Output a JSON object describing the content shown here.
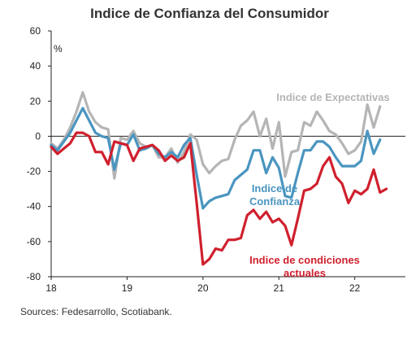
{
  "chart_data": {
    "type": "line",
    "title": "Indice de Confianza del Consumidor",
    "unit_label": "%",
    "source": "Sources: Fedesarrollo, Scotiabank.",
    "xlabel": "",
    "ylabel": "",
    "ylim": [
      -80,
      60
    ],
    "yticks": [
      60,
      40,
      20,
      0,
      -20,
      -40,
      -60,
      -80
    ],
    "xlim": [
      2018.0,
      2022.667
    ],
    "xticks": [
      {
        "value": 2018,
        "label": "18"
      },
      {
        "value": 2019,
        "label": "19"
      },
      {
        "value": 2020,
        "label": "20"
      },
      {
        "value": 2021,
        "label": "21"
      },
      {
        "value": 2022,
        "label": "22"
      }
    ],
    "series": [
      {
        "name": "Indice de Expectativas",
        "label_lines": [
          "Indice de Expectativas"
        ],
        "color": "#b5b5b5",
        "start": 2018.0,
        "step": 0.08333,
        "values": [
          -4,
          -7,
          -2,
          5,
          14,
          25,
          14,
          8,
          5,
          4,
          -24,
          -1,
          -2,
          3,
          -4,
          -6,
          -5,
          -12,
          -12,
          -7,
          -15,
          -9,
          1,
          -2,
          -16,
          -21,
          -17,
          -14,
          -13,
          -2,
          6,
          9,
          14,
          0,
          10,
          -7,
          8,
          -23,
          -9,
          -8,
          8,
          6,
          14,
          9,
          3,
          1,
          -4,
          -10,
          -8,
          -3,
          18,
          5,
          17
        ]
      },
      {
        "name": "Indice de Confianza",
        "label_lines": [
          "Indice de",
          "Confianza"
        ],
        "color": "#4a95c0",
        "start": 2018.0,
        "step": 0.08333,
        "values": [
          -5,
          -8,
          -3,
          2,
          9,
          16,
          9,
          2,
          0,
          -1,
          -19,
          -4,
          -5,
          1,
          -8,
          -7,
          -5,
          -10,
          -12,
          -9,
          -12,
          -5,
          -1,
          -22,
          -41,
          -37,
          -35,
          -34,
          -33,
          -25,
          -22,
          -19,
          -8,
          -8,
          -21,
          -12,
          -18,
          -34,
          -35,
          -21,
          -8,
          -8,
          -3,
          -3,
          -6,
          -12,
          -17,
          -17,
          -17,
          -14,
          3,
          -10,
          -2
        ]
      },
      {
        "name": "Indice de condiciones actuales",
        "label_lines": [
          "Indice de condiciones",
          "actuales"
        ],
        "color": "#d0202e",
        "start": 2018.0,
        "step": 0.08333,
        "values": [
          -6,
          -10,
          -7,
          -4,
          2,
          2,
          0,
          -9,
          -9,
          -16,
          -3,
          -4,
          -5,
          -14,
          -7,
          -6,
          -5,
          -8,
          -14,
          -11,
          -14,
          -12,
          -4,
          -38,
          -73,
          -70,
          -64,
          -65,
          -59,
          -59,
          -58,
          -45,
          -42,
          -47,
          -43,
          -49,
          -47,
          -51,
          -62,
          -47,
          -31,
          -30,
          -27,
          -17,
          -12,
          -23,
          -27,
          -38,
          -31,
          -33,
          -30,
          -19,
          -32,
          -30
        ]
      }
    ],
    "annotations": [
      {
        "series": "Indice de Expectativas"
      },
      {
        "series": "Indice de Confianza"
      },
      {
        "series": "Indice de condiciones actuales"
      }
    ],
    "grid": false,
    "legend": "none"
  }
}
